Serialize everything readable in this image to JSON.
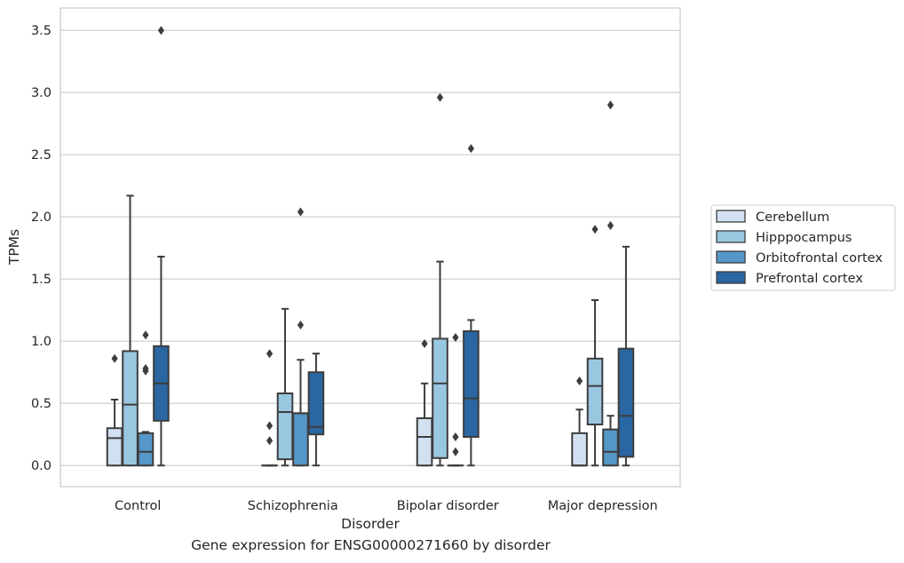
{
  "chart_data": {
    "type": "box",
    "caption": "Gene expression for ENSG00000271660 by disorder",
    "xlabel": "Disorder",
    "ylabel": "TPMs",
    "ylim": [
      -0.17,
      3.68
    ],
    "yticks": [
      "0.0",
      "0.5",
      "1.0",
      "1.5",
      "2.0",
      "2.5",
      "3.0",
      "3.5"
    ],
    "grid": "horizontal",
    "legend_position": "right",
    "categories": [
      "Control",
      "Schizophrenia",
      "Bipolar disorder",
      "Major depression"
    ],
    "series": [
      {
        "name": "Cerebellum",
        "color": "#d2e1f1",
        "boxes": [
          {
            "whislo": 0.0,
            "q1": 0.0,
            "med": 0.22,
            "q3": 0.3,
            "whishi": 0.53,
            "fliers": [
              0.86
            ]
          },
          {
            "whislo": 0.0,
            "q1": 0.0,
            "med": 0.0,
            "q3": 0.0,
            "whishi": 0.0,
            "fliers": [
              0.2,
              0.32,
              0.9
            ]
          },
          {
            "whislo": 0.0,
            "q1": 0.0,
            "med": 0.23,
            "q3": 0.38,
            "whishi": 0.66,
            "fliers": [
              0.98
            ]
          },
          {
            "whislo": 0.0,
            "q1": 0.0,
            "med": 0.0,
            "q3": 0.26,
            "whishi": 0.45,
            "fliers": [
              0.68
            ]
          }
        ]
      },
      {
        "name": "Hipppocampus",
        "color": "#9ac7e0",
        "boxes": [
          {
            "whislo": 0.0,
            "q1": 0.0,
            "med": 0.49,
            "q3": 0.92,
            "whishi": 2.17,
            "fliers": []
          },
          {
            "whislo": 0.0,
            "q1": 0.05,
            "med": 0.43,
            "q3": 0.58,
            "whishi": 1.26,
            "fliers": []
          },
          {
            "whislo": 0.0,
            "q1": 0.06,
            "med": 0.66,
            "q3": 1.02,
            "whishi": 1.64,
            "fliers": [
              2.96
            ]
          },
          {
            "whislo": 0.0,
            "q1": 0.33,
            "med": 0.64,
            "q3": 0.86,
            "whishi": 1.33,
            "fliers": [
              1.9
            ]
          }
        ]
      },
      {
        "name": "Orbitofrontal cortex",
        "color": "#5597c6",
        "boxes": [
          {
            "whislo": 0.0,
            "q1": 0.0,
            "med": 0.11,
            "q3": 0.26,
            "whishi": 0.27,
            "fliers": [
              0.76,
              0.78,
              1.05
            ]
          },
          {
            "whislo": 0.0,
            "q1": 0.0,
            "med": 0.42,
            "q3": 0.42,
            "whishi": 0.85,
            "fliers": [
              1.13,
              2.04
            ]
          },
          {
            "whislo": 0.0,
            "q1": 0.0,
            "med": 0.0,
            "q3": 0.0,
            "whishi": 0.0,
            "fliers": [
              0.11,
              0.23,
              1.03
            ]
          },
          {
            "whislo": 0.0,
            "q1": 0.0,
            "med": 0.11,
            "q3": 0.29,
            "whishi": 0.4,
            "fliers": [
              1.93,
              2.9
            ]
          }
        ]
      },
      {
        "name": "Prefrontal cortex",
        "color": "#2a66a2",
        "boxes": [
          {
            "whislo": 0.0,
            "q1": 0.36,
            "med": 0.66,
            "q3": 0.96,
            "whishi": 1.68,
            "fliers": [
              3.5
            ]
          },
          {
            "whislo": 0.0,
            "q1": 0.25,
            "med": 0.31,
            "q3": 0.75,
            "whishi": 0.9,
            "fliers": []
          },
          {
            "whislo": 0.0,
            "q1": 0.23,
            "med": 0.54,
            "q3": 1.08,
            "whishi": 1.17,
            "fliers": [
              2.55
            ]
          },
          {
            "whislo": 0.0,
            "q1": 0.07,
            "med": 0.4,
            "q3": 0.94,
            "whishi": 1.76,
            "fliers": []
          }
        ]
      }
    ]
  }
}
